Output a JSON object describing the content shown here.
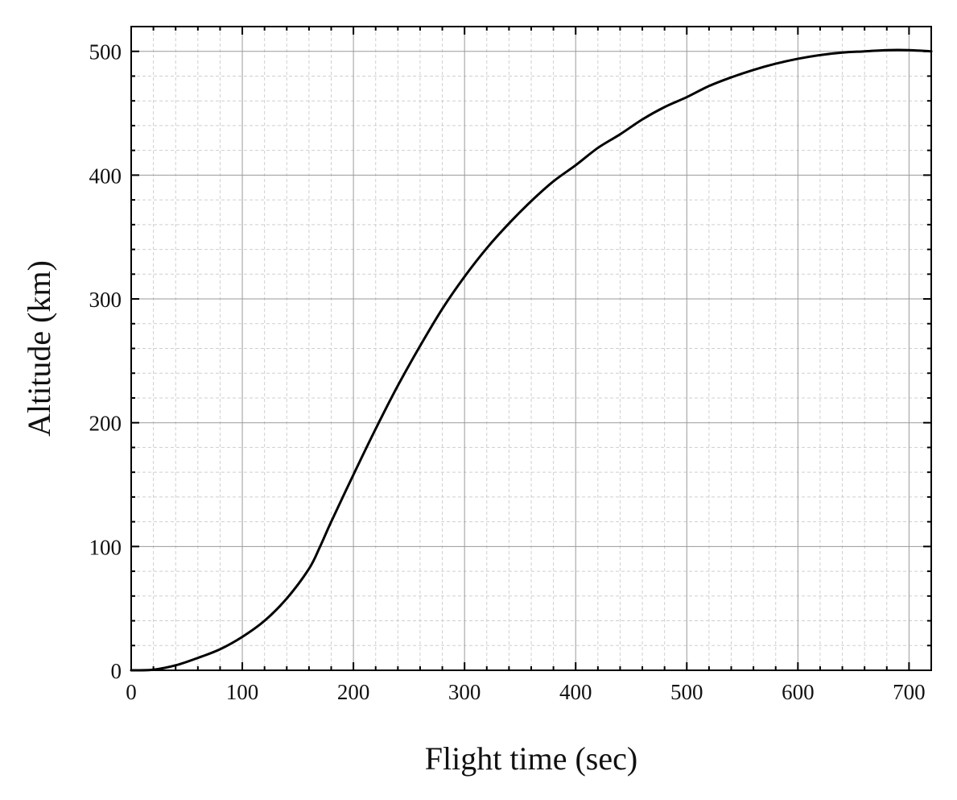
{
  "chart_data": {
    "type": "line",
    "title": "",
    "xlabel": "Flight time (sec)",
    "ylabel": "Altitude (km)",
    "xlim": [
      0,
      720
    ],
    "ylim": [
      0,
      520
    ],
    "xticks": [
      0,
      100,
      200,
      300,
      400,
      500,
      600,
      700
    ],
    "yticks": [
      0,
      100,
      200,
      300,
      400,
      500
    ],
    "x_minor_step": 20,
    "y_minor_step": 20,
    "grid": true,
    "legend": "none",
    "line_color": "#000000",
    "series": [
      {
        "x": [
          0,
          20,
          40,
          60,
          80,
          100,
          120,
          140,
          160,
          170,
          180,
          200,
          220,
          240,
          260,
          280,
          300,
          320,
          340,
          360,
          380,
          400,
          420,
          440,
          460,
          480,
          500,
          520,
          540,
          560,
          580,
          600,
          620,
          640,
          660,
          680,
          700,
          720
        ],
        "values": [
          0,
          0.5,
          4,
          10,
          17,
          27,
          40,
          58,
          82,
          100,
          120,
          158,
          195,
          230,
          262,
          292,
          318,
          341,
          361,
          379,
          395,
          408,
          422,
          433,
          445,
          455,
          463,
          472,
          479,
          485,
          490,
          494,
          497,
          499,
          500,
          501,
          501,
          500
        ]
      }
    ]
  }
}
